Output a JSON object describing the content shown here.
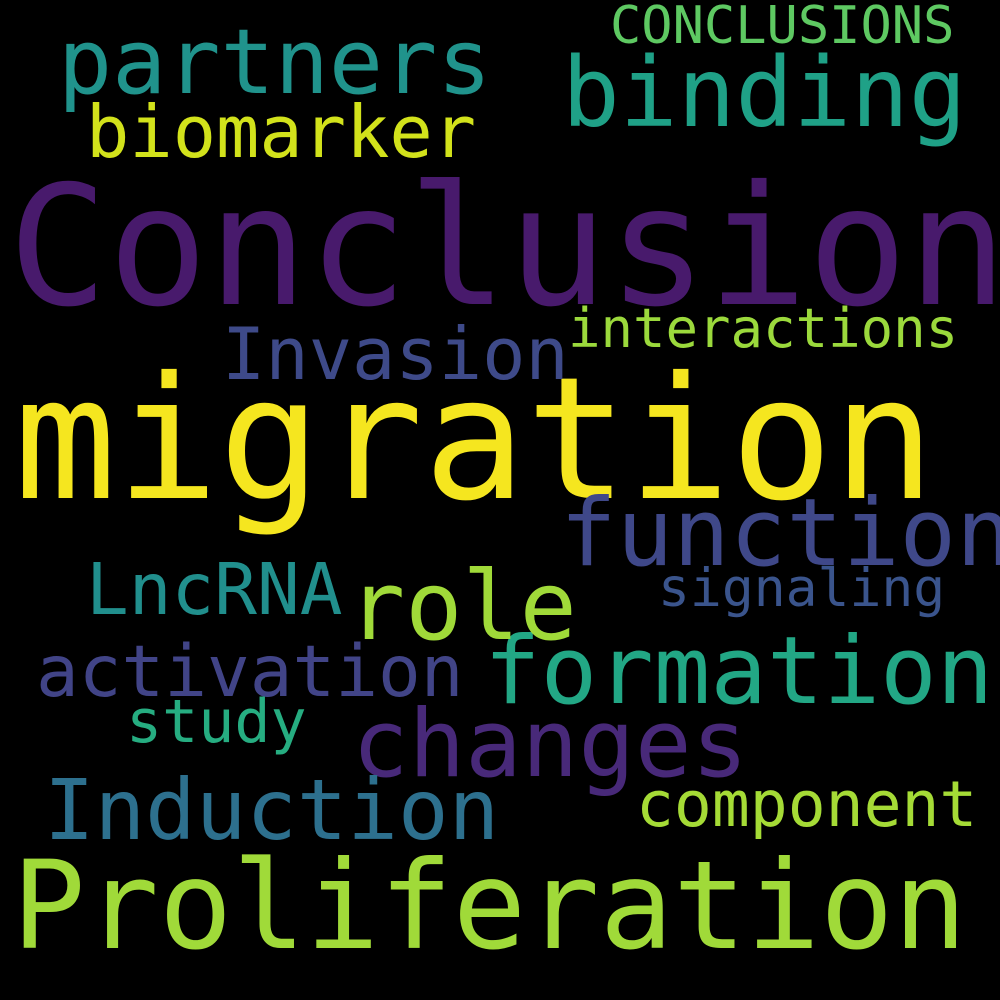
{
  "words": [
    {
      "text": "Conclusion",
      "color": "#481a6c"
    },
    {
      "text": "migration",
      "color": "#f5e61f"
    },
    {
      "text": "Proliferation",
      "color": "#a0da39"
    },
    {
      "text": "formation",
      "color": "#22a785"
    },
    {
      "text": "function",
      "color": "#3f4889"
    },
    {
      "text": "changes",
      "color": "#482979"
    },
    {
      "text": "binding",
      "color": "#1fa187"
    },
    {
      "text": "partners",
      "color": "#20938c"
    },
    {
      "text": "biomarker",
      "color": "#d2e21b"
    },
    {
      "text": "role",
      "color": "#a0da39"
    },
    {
      "text": "Induction",
      "color": "#2d708e"
    },
    {
      "text": "Invasion",
      "color": "#3e4a89"
    },
    {
      "text": "activation",
      "color": "#414487"
    },
    {
      "text": "LncRNA",
      "color": "#218f8d"
    },
    {
      "text": "component",
      "color": "#a5db36"
    },
    {
      "text": "interactions",
      "color": "#9bd93c"
    },
    {
      "text": "study",
      "color": "#26ad81"
    },
    {
      "text": "signaling",
      "color": "#3a548c"
    },
    {
      "text": "CONCLUSIONS",
      "color": "#5ec962"
    }
  ]
}
